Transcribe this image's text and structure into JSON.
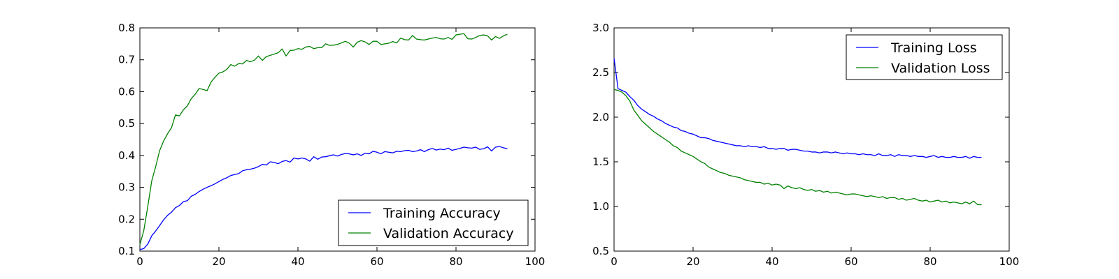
{
  "chart_data": [
    {
      "type": "line",
      "title": "",
      "xlabel": "",
      "ylabel": "",
      "xlim": [
        0,
        100
      ],
      "ylim": [
        0.1,
        0.8
      ],
      "xticks": [
        "0",
        "20",
        "40",
        "60",
        "80",
        "100"
      ],
      "yticks": [
        "0.1",
        "0.2",
        "0.3",
        "0.4",
        "0.5",
        "0.6",
        "0.7",
        "0.8"
      ],
      "grid": false,
      "legend_position": "bottom-right",
      "series": [
        {
          "name": "Training Accuracy",
          "color": "#0000ff",
          "values": [
            0.105,
            0.108,
            0.122,
            0.148,
            0.163,
            0.18,
            0.198,
            0.212,
            0.222,
            0.236,
            0.243,
            0.255,
            0.258,
            0.272,
            0.278,
            0.287,
            0.294,
            0.3,
            0.305,
            0.311,
            0.318,
            0.325,
            0.33,
            0.337,
            0.34,
            0.343,
            0.352,
            0.355,
            0.357,
            0.36,
            0.365,
            0.372,
            0.37,
            0.38,
            0.378,
            0.374,
            0.381,
            0.384,
            0.379,
            0.392,
            0.389,
            0.392,
            0.389,
            0.382,
            0.396,
            0.388,
            0.395,
            0.396,
            0.399,
            0.402,
            0.398,
            0.403,
            0.406,
            0.405,
            0.402,
            0.405,
            0.4,
            0.407,
            0.405,
            0.413,
            0.41,
            0.405,
            0.412,
            0.41,
            0.408,
            0.413,
            0.412,
            0.415,
            0.416,
            0.412,
            0.414,
            0.418,
            0.412,
            0.418,
            0.422,
            0.417,
            0.42,
            0.418,
            0.423,
            0.416,
            0.419,
            0.422,
            0.426,
            0.424,
            0.423,
            0.426,
            0.419,
            0.421,
            0.427,
            0.414,
            0.426,
            0.428,
            0.424,
            0.421
          ]
        },
        {
          "name": "Validation Accuracy",
          "color": "#008000",
          "values": [
            0.12,
            0.165,
            0.24,
            0.32,
            0.365,
            0.415,
            0.445,
            0.468,
            0.487,
            0.527,
            0.524,
            0.543,
            0.555,
            0.578,
            0.592,
            0.61,
            0.607,
            0.603,
            0.63,
            0.645,
            0.658,
            0.662,
            0.67,
            0.685,
            0.68,
            0.688,
            0.687,
            0.698,
            0.694,
            0.699,
            0.712,
            0.698,
            0.71,
            0.714,
            0.718,
            0.722,
            0.734,
            0.712,
            0.729,
            0.73,
            0.735,
            0.733,
            0.74,
            0.742,
            0.735,
            0.738,
            0.738,
            0.75,
            0.745,
            0.746,
            0.748,
            0.753,
            0.758,
            0.752,
            0.74,
            0.755,
            0.76,
            0.756,
            0.748,
            0.758,
            0.758,
            0.748,
            0.75,
            0.752,
            0.757,
            0.753,
            0.768,
            0.763,
            0.762,
            0.776,
            0.765,
            0.763,
            0.762,
            0.765,
            0.768,
            0.77,
            0.766,
            0.765,
            0.77,
            0.764,
            0.778,
            0.78,
            0.782,
            0.766,
            0.765,
            0.77,
            0.776,
            0.778,
            0.775,
            0.762,
            0.773,
            0.767,
            0.775,
            0.78
          ]
        }
      ]
    },
    {
      "type": "line",
      "title": "",
      "xlabel": "",
      "ylabel": "",
      "xlim": [
        0,
        100
      ],
      "ylim": [
        0.5,
        3.0
      ],
      "xticks": [
        "0",
        "20",
        "40",
        "60",
        "80",
        "100"
      ],
      "yticks": [
        "0.5",
        "1.0",
        "1.5",
        "2.0",
        "2.5",
        "3.0"
      ],
      "grid": false,
      "legend_position": "top-right",
      "series": [
        {
          "name": "Training Loss",
          "color": "#0000ff",
          "values": [
            2.66,
            2.32,
            2.3,
            2.28,
            2.23,
            2.19,
            2.13,
            2.09,
            2.06,
            2.03,
            2.01,
            1.98,
            1.96,
            1.93,
            1.91,
            1.89,
            1.88,
            1.85,
            1.84,
            1.82,
            1.81,
            1.79,
            1.77,
            1.77,
            1.76,
            1.74,
            1.73,
            1.72,
            1.71,
            1.7,
            1.69,
            1.68,
            1.68,
            1.67,
            1.68,
            1.67,
            1.67,
            1.66,
            1.67,
            1.65,
            1.65,
            1.64,
            1.65,
            1.65,
            1.63,
            1.64,
            1.64,
            1.63,
            1.62,
            1.62,
            1.61,
            1.61,
            1.6,
            1.61,
            1.61,
            1.6,
            1.61,
            1.6,
            1.59,
            1.6,
            1.59,
            1.59,
            1.58,
            1.59,
            1.58,
            1.58,
            1.57,
            1.59,
            1.57,
            1.57,
            1.58,
            1.56,
            1.58,
            1.57,
            1.57,
            1.56,
            1.57,
            1.56,
            1.56,
            1.55,
            1.56,
            1.57,
            1.55,
            1.56,
            1.55,
            1.55,
            1.56,
            1.55,
            1.55,
            1.56,
            1.54,
            1.56,
            1.55,
            1.55
          ]
        },
        {
          "name": "Validation Loss",
          "color": "#008000",
          "values": [
            2.31,
            2.3,
            2.28,
            2.24,
            2.18,
            2.08,
            2.02,
            1.96,
            1.92,
            1.88,
            1.84,
            1.81,
            1.78,
            1.75,
            1.72,
            1.68,
            1.66,
            1.62,
            1.6,
            1.58,
            1.56,
            1.53,
            1.5,
            1.48,
            1.44,
            1.42,
            1.4,
            1.38,
            1.37,
            1.35,
            1.34,
            1.33,
            1.32,
            1.3,
            1.29,
            1.28,
            1.27,
            1.27,
            1.25,
            1.26,
            1.24,
            1.25,
            1.24,
            1.2,
            1.23,
            1.21,
            1.2,
            1.21,
            1.19,
            1.18,
            1.19,
            1.17,
            1.18,
            1.16,
            1.17,
            1.15,
            1.16,
            1.15,
            1.14,
            1.13,
            1.14,
            1.14,
            1.13,
            1.12,
            1.11,
            1.12,
            1.11,
            1.1,
            1.11,
            1.09,
            1.1,
            1.1,
            1.08,
            1.09,
            1.07,
            1.08,
            1.09,
            1.07,
            1.06,
            1.07,
            1.05,
            1.06,
            1.07,
            1.05,
            1.06,
            1.04,
            1.05,
            1.04,
            1.03,
            1.05,
            1.03,
            1.06,
            1.02,
            1.02
          ]
        }
      ]
    }
  ]
}
